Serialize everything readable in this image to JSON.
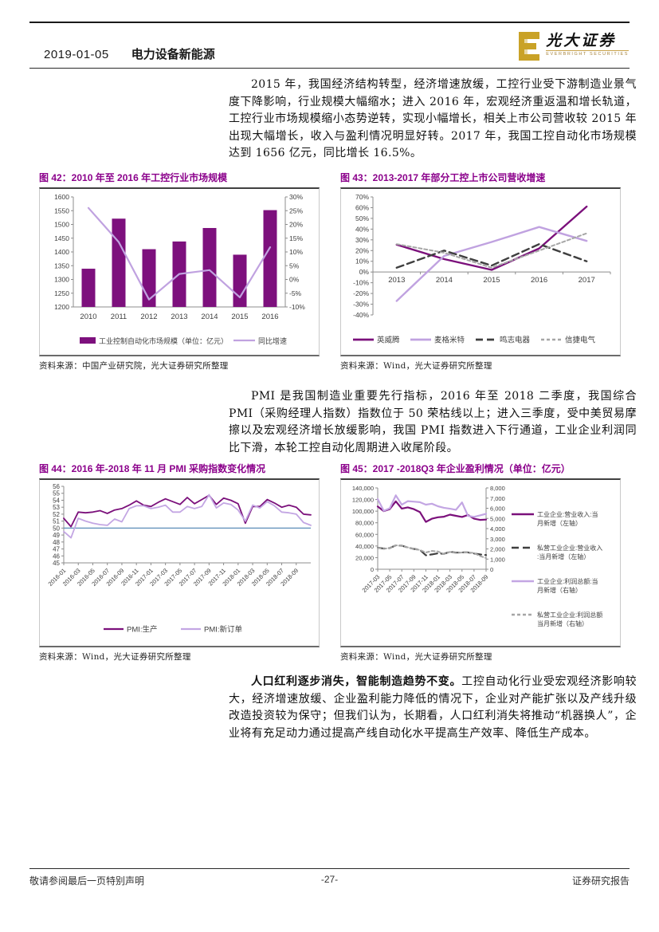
{
  "page": {
    "header": {
      "date": "2019-01-05",
      "section": "电力设备新能源"
    },
    "logo": {
      "name_cn": "光大证券",
      "name_en": "EVERBRIGHT SECURITIES"
    },
    "colors": {
      "accent_purple": "#8B008B",
      "brand_gold": "#C9A227",
      "ref_blue": "#5B8DB8"
    },
    "paragraphs": {
      "p1": "2015 年，我国经济结构转型，经济增速放缓，工控行业受下游制造业景气度下降影响，行业规模大幅缩水；进入 2016 年，宏观经济重返温和增长轨道，工控行业市场规模缩小态势逆转，实现小幅增长，相关上市公司营收较 2015 年出现大幅增长，收入与盈利情况明显好转。2017 年，我国工控自动化市场规模达到 1656 亿元，同比增长 16.5%。",
      "p2": "PMI 是我国制造业重要先行指标，2016 年至 2018 二季度，我国综合 PMI（采购经理人指数）指数位于 50 荣枯线以上；进入三季度，受中美贸易摩擦以及宏观经济增长放缓影响，我国 PMI 指数进入下行通道，工业企业利润同比下滑，本轮工控自动化周期进入收尾阶段。",
      "p3_bold": "人口红利逐步消失，智能制造趋势不变。",
      "p3_rest": "工控自动化行业受宏观经济影响较大，经济增速放缓、企业盈利能力降低的情况下，企业对产能扩张以及产线升级改造投资较为保守；但我们认为，长期看，人口红利消失将推动“机器换人”，企业将有充足动力通过提高产线自动化水平提高生产效率、降低生产成本。"
    },
    "footer": {
      "left": "敬请参阅最后一页特别声明",
      "center": "-27-",
      "right": "证券研究报告"
    }
  },
  "chart_data": [
    {
      "id": "fig42",
      "type": "bar",
      "title": "图 42：2010 年至 2016 年工控行业市场规模",
      "source": "资料来源：中国产业研究院，光大证券研究所整理",
      "categories": [
        "2010",
        "2011",
        "2012",
        "2013",
        "2014",
        "2015",
        "2016"
      ],
      "bar_series": {
        "name": "工业控制自动化市场规模（单位：亿元）",
        "values": [
          1339,
          1521,
          1410,
          1438,
          1487,
          1390,
          1552
        ],
        "color": "#7D107D",
        "axis": "left"
      },
      "line_series": {
        "name": "同比增速",
        "values": [
          26,
          13.6,
          -7.3,
          2.0,
          3.4,
          -6.5,
          11.7
        ],
        "color": "#C0A2E0",
        "axis": "right"
      },
      "ylim_left": [
        1200,
        1600
      ],
      "yticks_left": [
        "1200",
        "1250",
        "1300",
        "1350",
        "1400",
        "1450",
        "1500",
        "1550",
        "1600"
      ],
      "ylim_right": [
        -10,
        30
      ],
      "yticks_right": [
        "-10%",
        "-5%",
        "0%",
        "5%",
        "10%",
        "15%",
        "20%",
        "25%",
        "30%"
      ],
      "grid": false,
      "legend_position": "bottom"
    },
    {
      "id": "fig43",
      "type": "line",
      "title": "图 43：2013-2017 年部分工控上市公司营收增速",
      "source": "资料来源：Wind，光大证券研究所整理",
      "categories": [
        "2013",
        "2014",
        "2015",
        "2016",
        "2017"
      ],
      "ylim": [
        -40,
        70
      ],
      "yticks": [
        "-40%",
        "-30%",
        "-20%",
        "-10%",
        "0%",
        "10%",
        "20%",
        "30%",
        "40%",
        "50%",
        "60%",
        "70%"
      ],
      "series": [
        {
          "name": "英威腾",
          "values": [
            25.5,
            12,
            2,
            22,
            61
          ],
          "color": "#7B107B",
          "dash": "",
          "width": 2.4
        },
        {
          "name": "麦格米特",
          "values": [
            -27,
            15,
            28,
            42,
            29
          ],
          "color": "#C0A2E0",
          "dash": "",
          "width": 2.4
        },
        {
          "name": "鸣志电器",
          "values": [
            4,
            20,
            6,
            26,
            10
          ],
          "color": "#3F3F3F",
          "dash": "9,5",
          "width": 2.4
        },
        {
          "name": "信捷电气",
          "values": [
            26,
            18,
            4,
            20,
            36
          ],
          "color": "#A6A6A6",
          "dash": "4,3",
          "width": 2
        }
      ],
      "grid": false,
      "legend_position": "bottom"
    },
    {
      "id": "fig44",
      "type": "line",
      "title": "图 44：2016 年-2018 年 11 月 PMI 采购指数变化情况",
      "source": "资料来源：Wind，光大证券研究所整理",
      "x_range": "2016-01 to 2018-11 monthly",
      "xticks": [
        "2016-01",
        "2016-03",
        "2016-05",
        "2016-07",
        "2016-09",
        "2016-11",
        "2017-01",
        "2017-03",
        "2017-05",
        "2017-07",
        "2017-09",
        "2017-11",
        "2018-01",
        "2018-03",
        "2018-05",
        "2018-07",
        "2018-09"
      ],
      "ylim": [
        45,
        56
      ],
      "yticks": [
        "45",
        "46",
        "47",
        "48",
        "49",
        "50",
        "51",
        "52",
        "53",
        "54",
        "55",
        "56"
      ],
      "ref_line": {
        "value": 50,
        "color": "#5B8DB8"
      },
      "series": [
        {
          "name": "PMI:生产",
          "values": [
            51.4,
            50.2,
            52.3,
            52.2,
            52.3,
            52.5,
            52.1,
            52.6,
            52.8,
            53.3,
            53.9,
            53.3,
            53.1,
            53.7,
            54.2,
            53.8,
            53.4,
            54.4,
            53.5,
            54.1,
            54.7,
            53.4,
            54.3,
            54.0,
            53.5,
            50.7,
            53.1,
            53.1,
            54.1,
            53.6,
            53.0,
            53.3,
            53.0,
            52.0,
            51.9
          ],
          "color": "#7B107B",
          "dash": "",
          "width": 1.8
        },
        {
          "name": "PMI:新订单",
          "values": [
            49.5,
            48.6,
            51.4,
            51.0,
            50.7,
            50.5,
            50.4,
            51.3,
            50.9,
            52.8,
            53.2,
            53.2,
            52.8,
            53.0,
            53.3,
            52.3,
            52.3,
            53.1,
            52.8,
            53.1,
            54.8,
            52.9,
            53.6,
            53.4,
            52.6,
            51.0,
            53.3,
            52.9,
            53.8,
            53.2,
            52.3,
            52.2,
            52.0,
            50.8,
            50.4
          ],
          "color": "#C3A6E3",
          "dash": "",
          "width": 1.8
        }
      ],
      "grid": false,
      "legend_position": "bottom"
    },
    {
      "id": "fig45",
      "type": "line",
      "title": "图 45：2017 -2018Q3 年企业盈利情况（单位：亿元）",
      "source": "资料来源：Wind，光大证券研究所整理",
      "x_range": "2017-03 to 2018-09 monthly",
      "xticks": [
        "2017-03",
        "2017-05",
        "2017-07",
        "2017-09",
        "2017-11",
        "2018-01",
        "2018-03",
        "2018-05",
        "2018-07",
        "2018-09"
      ],
      "ylim_left": [
        0,
        140000
      ],
      "yticks_left": [
        "0",
        "20,000",
        "40,000",
        "60,000",
        "80,000",
        "100,000",
        "120,000",
        "140,000"
      ],
      "ylim_right": [
        0,
        8000
      ],
      "yticks_right": [
        "0",
        "1,000",
        "2,000",
        "3,000",
        "4,000",
        "5,000",
        "6,000",
        "7,000",
        "8,000"
      ],
      "series": [
        {
          "name": "工业企业:营业收入:当月新增（左轴）",
          "axis": "left",
          "values": [
            108000,
            100000,
            103500,
            117000,
            104500,
            106500,
            103500,
            98500,
            81500,
            87000,
            89500,
            90500,
            94000,
            92000,
            90000,
            93500,
            87000,
            85000,
            85500
          ],
          "color": "#7B107B",
          "dash": "",
          "width": 2.2
        },
        {
          "name": "私营工业企业:营业收入:当月新增（左轴）",
          "axis": "left",
          "values": [
            37000,
            35500,
            36500,
            41000,
            40500,
            37500,
            35000,
            33500,
            24000,
            25500,
            27500,
            26500,
            30000,
            28500,
            29000,
            29000,
            27000,
            25500,
            24500
          ],
          "color": "#3F3F3F",
          "dash": "9,5",
          "width": 2.2
        },
        {
          "name": "工业企业:利润总额:当月新增（右轴）",
          "axis": "right",
          "values": [
            6900,
            5750,
            6000,
            7270,
            6350,
            6700,
            6650,
            6600,
            6350,
            6450,
            6200,
            6050,
            5950,
            5850,
            6570,
            5250,
            5150,
            5300,
            5450
          ],
          "color": "#C3A6E3",
          "dash": "",
          "width": 2.2
        },
        {
          "name": "私营工业企业:利润总额当月新增（右轴）",
          "axis": "right",
          "values": [
            2100,
            2000,
            2100,
            2350,
            2300,
            2150,
            2000,
            1900,
            1650,
            1800,
            1750,
            1500,
            1700,
            1600,
            1650,
            1650,
            1600,
            1300,
            1100
          ],
          "color": "#A6A6A6",
          "dash": "4,3",
          "width": 2
        }
      ],
      "grid": false,
      "legend_position": "right"
    }
  ]
}
